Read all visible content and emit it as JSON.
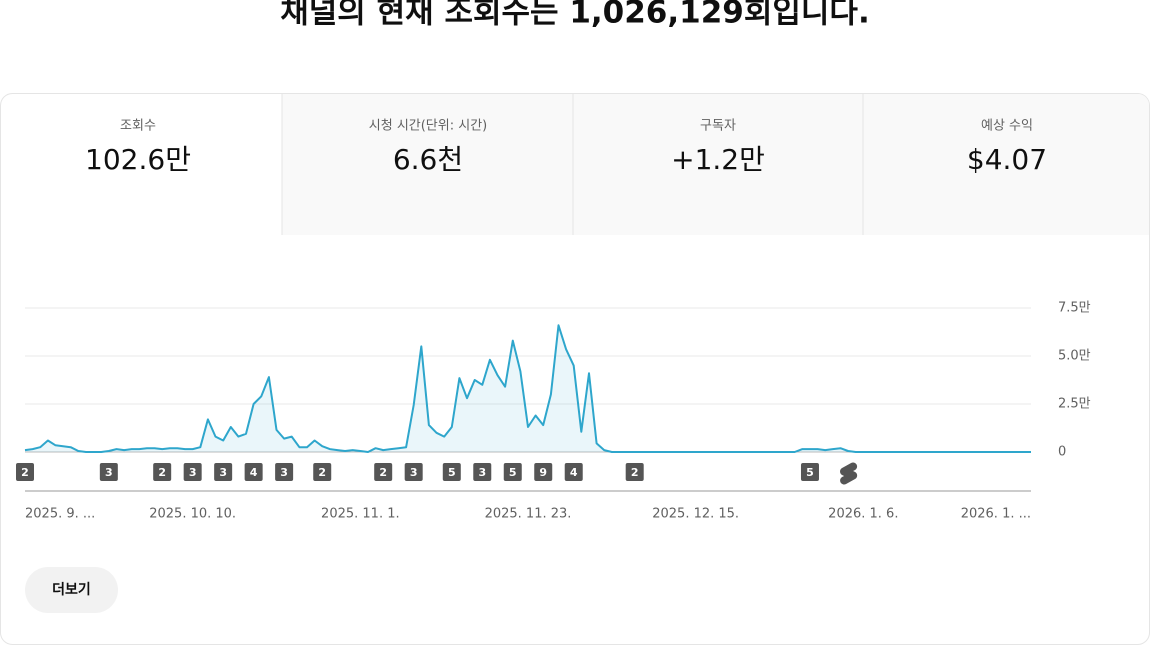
{
  "header": {
    "title": "채널의 현재 조회수는 1,026,129회입니다."
  },
  "cards": [
    {
      "label": "조회수",
      "value": "102.6만"
    },
    {
      "label": "시청 시간(단위: 시간)",
      "value": "6.6천"
    },
    {
      "label": "구독자",
      "value": "+1.2만"
    },
    {
      "label": "예상 수익",
      "value": "$4.07"
    }
  ],
  "chart_data": {
    "type": "line",
    "color": "#2ea6cc",
    "categories": [
      "2025. 9. ...",
      null,
      null,
      null,
      null,
      null,
      null,
      null,
      null,
      null,
      null,
      null,
      null,
      null,
      null,
      null,
      null,
      null,
      null,
      null,
      null,
      null,
      "2025. 10. 10.",
      null,
      null,
      null,
      null,
      null,
      null,
      null,
      null,
      null,
      null,
      null,
      null,
      null,
      null,
      null,
      null,
      null,
      null,
      null,
      null,
      null,
      "2025. 11. 1.",
      null,
      null,
      null,
      null,
      null,
      null,
      null,
      null,
      null,
      null,
      null,
      null,
      null,
      null,
      null,
      null,
      null,
      null,
      null,
      null,
      null,
      "2025. 11. 23.",
      null,
      null,
      null,
      null,
      null,
      null,
      null,
      null,
      null,
      null,
      null,
      null,
      null,
      null,
      null,
      null,
      null,
      null,
      null,
      null,
      null,
      "2025. 12. 15.",
      null,
      null,
      null,
      null,
      null,
      null,
      null,
      null,
      null,
      null,
      null,
      null,
      null,
      null,
      null,
      null,
      null,
      null,
      null,
      null,
      null,
      "2026. 1. 6.",
      null,
      null,
      null,
      null,
      null,
      null,
      null,
      null,
      null,
      null,
      null,
      null,
      null,
      null,
      null,
      null,
      null,
      null,
      null,
      null,
      null,
      "2026. 1. ..."
    ],
    "values": [
      1000,
      1500,
      2500,
      6000,
      3500,
      3000,
      2500,
      500,
      0,
      0,
      0,
      500,
      1500,
      1000,
      1500,
      1500,
      2000,
      2000,
      1500,
      2000,
      2000,
      1500,
      1500,
      2500,
      17000,
      8000,
      6000,
      13000,
      8000,
      9500,
      25000,
      29000,
      39000,
      11500,
      7000,
      8000,
      2500,
      2500,
      6000,
      3000,
      1500,
      1000,
      500,
      1000,
      500,
      0,
      2000,
      1000,
      1500,
      2000,
      2500,
      24500,
      55000,
      14000,
      10000,
      8000,
      13000,
      38500,
      28000,
      37500,
      35000,
      48000,
      40000,
      34000,
      58000,
      42000,
      13000,
      19000,
      14000,
      30000,
      66000,
      53500,
      45000,
      10500,
      41000,
      4500,
      1000,
      0,
      0,
      0,
      0,
      0,
      0,
      0,
      0,
      0,
      0,
      0,
      0,
      0,
      0,
      0,
      0,
      0,
      0,
      0,
      0,
      0,
      0,
      0,
      0,
      0,
      1500,
      1500,
      1500,
      1000,
      1500,
      2000,
      500,
      0,
      0,
      0,
      0,
      0,
      0,
      0,
      0,
      0,
      0,
      0,
      0,
      0,
      0,
      0,
      0,
      0,
      0,
      0,
      0,
      0,
      0,
      0,
      0
    ],
    "ylim": [
      0,
      75000
    ],
    "yticks": [
      0,
      {
        "value": 25000,
        "label": "2.5만"
      },
      {
        "value": 50000,
        "label": "5.0만"
      },
      {
        "value": 75000,
        "label": "7.5만"
      }
    ],
    "grid": true,
    "upload_markers": [
      {
        "index": 0,
        "count": 2
      },
      {
        "index": 11,
        "count": 3
      },
      {
        "index": 18,
        "count": 2
      },
      {
        "index": 22,
        "count": 3
      },
      {
        "index": 26,
        "count": 3
      },
      {
        "index": 30,
        "count": 4
      },
      {
        "index": 34,
        "count": 3
      },
      {
        "index": 39,
        "count": 2
      },
      {
        "index": 47,
        "count": 2
      },
      {
        "index": 51,
        "count": 3
      },
      {
        "index": 56,
        "count": 5
      },
      {
        "index": 60,
        "count": 3
      },
      {
        "index": 64,
        "count": 5
      },
      {
        "index": 68,
        "count": 9
      },
      {
        "index": 72,
        "count": 4
      },
      {
        "index": 80,
        "count": 2
      },
      {
        "index": 103,
        "count": 5
      }
    ],
    "shorts_marker_index": 108
  },
  "button": {
    "label": "더보기"
  }
}
